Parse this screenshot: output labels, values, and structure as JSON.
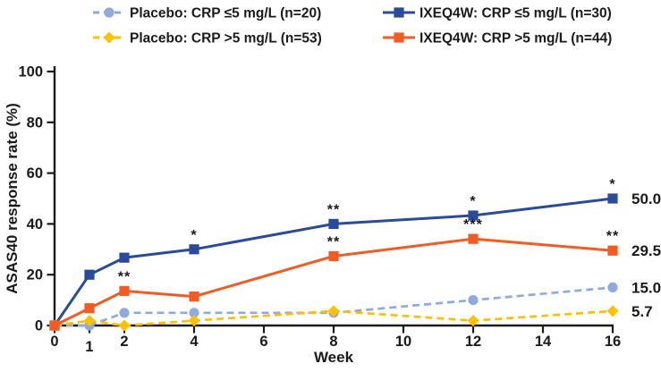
{
  "chart_data": {
    "type": "line",
    "title": "",
    "xlabel": "Week",
    "ylabel": "ASAS40 response rate (%)",
    "x_weeks": [
      0,
      1,
      2,
      4,
      8,
      12,
      16
    ],
    "x_ticks": [
      0,
      1,
      2,
      4,
      6,
      8,
      10,
      12,
      14,
      16
    ],
    "y_ticks": [
      0,
      20,
      40,
      60,
      80,
      100
    ],
    "ylim": [
      0,
      100
    ],
    "xlim": [
      0,
      16
    ],
    "grid": false,
    "legend_position": "top",
    "series": [
      {
        "id": "placebo-crp-le5",
        "name": "Placebo: CRP ≤5 mg/L (n=20)",
        "color": "#8FAADC",
        "line_style": "dashed",
        "marker": "circle",
        "values": [
          0,
          0,
          5.0,
          5.0,
          5.0,
          10.0,
          15.0
        ],
        "end_label": "15.0",
        "annotations": []
      },
      {
        "id": "ixeq4w-crp-le5",
        "name": "IXEQ4W: CRP ≤5 mg/L (n=30)",
        "color": "#2A4B9B",
        "line_style": "solid",
        "marker": "square",
        "values": [
          0,
          20.0,
          26.7,
          30.0,
          40.0,
          43.3,
          50.0
        ],
        "end_label": "50.0",
        "annotations": [
          {
            "week": 4,
            "text": "*"
          },
          {
            "week": 8,
            "text": "**"
          },
          {
            "week": 12,
            "text": "*"
          },
          {
            "week": 16,
            "text": "*"
          }
        ]
      },
      {
        "id": "placebo-crp-gt5",
        "name": "Placebo: CRP >5 mg/L (n=53)",
        "color": "#FFC000",
        "line_style": "dashed",
        "marker": "diamond",
        "values": [
          0,
          1.9,
          0,
          1.9,
          5.7,
          1.9,
          5.7
        ],
        "end_label": "5.7",
        "annotations": []
      },
      {
        "id": "ixeq4w-crp-gt5",
        "name": "IXEQ4W: CRP >5 mg/L (n=44)",
        "color": "#F25C22",
        "line_style": "solid",
        "marker": "square",
        "values": [
          0,
          6.8,
          13.6,
          11.4,
          27.3,
          34.1,
          29.5
        ],
        "end_label": "29.5",
        "annotations": [
          {
            "week": 2,
            "text": "**"
          },
          {
            "week": 8,
            "text": "**"
          },
          {
            "week": 12,
            "text": "***"
          },
          {
            "week": 16,
            "text": "**"
          }
        ]
      }
    ]
  }
}
